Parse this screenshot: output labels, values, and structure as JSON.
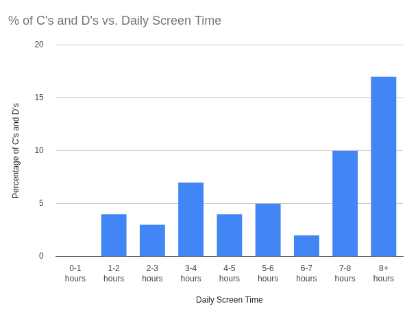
{
  "chart_data": {
    "type": "bar",
    "title": "% of C's and D's vs. Daily Screen Time",
    "x_label": "Daily Screen Time",
    "y_label": "Percentage of C's and D's",
    "categories": [
      "0-1 hours",
      "1-2 hours",
      "2-3 hours",
      "3-4 hours",
      "4-5 hours",
      "5-6 hours",
      "6-7 hours",
      "7-8 hours",
      "8+ hours"
    ],
    "values": [
      0,
      4,
      3,
      7,
      4,
      5,
      2,
      10,
      17
    ],
    "color": "#4285f4",
    "ylim": [
      0,
      20
    ],
    "yticks": [
      0,
      5,
      10,
      15,
      20
    ],
    "grid": true
  }
}
